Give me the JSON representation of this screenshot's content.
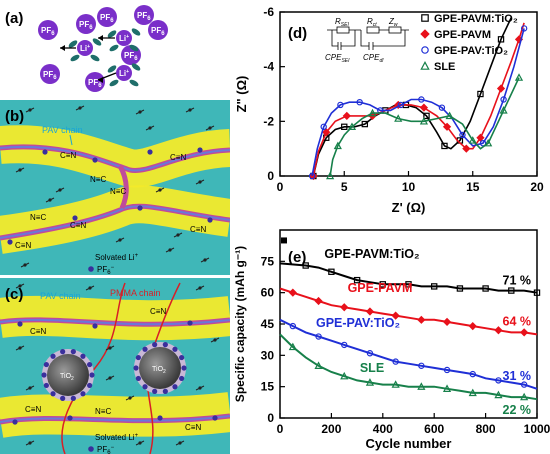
{
  "panels": {
    "a": {
      "label": "(a)",
      "ion_pf6": "PF",
      "ion_pf6_sub": "6",
      "ion_li": "Li",
      "ion_li_sup": "+"
    },
    "b": {
      "label": "(b)",
      "pav_chain": "PAV chain",
      "cn": "C≡N",
      "nc": "N≡C",
      "legend_li": "Solvated Li",
      "legend_li_sup": "+",
      "legend_pf6": "PF",
      "legend_pf6_sub": "6",
      "legend_pf6_sup": "−"
    },
    "c": {
      "label": "(c)",
      "pav_chain": "PAV chain",
      "pmma_chain": "PMMA chain",
      "tio2": "TiO",
      "tio2_sub": "2",
      "cn": "C≡N",
      "nc": "N≡C",
      "legend_li": "Solvated Li",
      "legend_li_sup": "+",
      "legend_pf6": "PF",
      "legend_pf6_sub": "6",
      "legend_pf6_sup": "−"
    }
  },
  "colors": {
    "gpe_pavm_tio2": "#000000",
    "gpe_pavm": "#e8111b",
    "gpe_pav_tio2": "#1f2fd6",
    "sle": "#17804a",
    "pf6": "#7a2fc9",
    "li": "#7a2fc9",
    "yellow": "#f3ea2a",
    "teal": "#3fb7b8"
  },
  "chart_data": [
    {
      "panel": "(d)",
      "type": "scatter",
      "xlabel": "Z' (Ω)",
      "ylabel": "Z\" (Ω)",
      "xlim": [
        0,
        20
      ],
      "ylim": [
        0,
        -6
      ],
      "xticks": [
        "0",
        "5",
        "10",
        "15",
        "20"
      ],
      "yticks": [
        "0",
        "-2",
        "-4",
        "-6"
      ],
      "circuit_labels": {
        "rsei": "R",
        "rsei_sub": "SEI",
        "rct": "R",
        "rct_sub": "ct",
        "zw": "Z",
        "zw_sub": "w",
        "cpe_sei": "CPE",
        "cpe_sei_sub": "SEI",
        "cpe_dl": "CPE",
        "cpe_dl_sub": "dl"
      },
      "series": [
        {
          "name": "GPE-PAVM:TiO₂",
          "marker": "square",
          "x": [
            2.6,
            3.0,
            3.6,
            4.3,
            5.0,
            5.8,
            6.6,
            7.4,
            8.2,
            9.0,
            9.8,
            10.6,
            11.4,
            12.2,
            12.8,
            13.3,
            14.0,
            14.8,
            15.6,
            16.4,
            17.2,
            18.0
          ],
          "y": [
            0,
            -0.8,
            -1.4,
            -1.7,
            -1.8,
            -1.8,
            -1.9,
            -2.2,
            -2.4,
            -2.6,
            -2.6,
            -2.5,
            -2.2,
            -1.6,
            -1.1,
            -1.0,
            -1.3,
            -2.0,
            -3.0,
            -4.0,
            -5.0,
            -5.8
          ]
        },
        {
          "name": "GPE-PAVM",
          "marker": "diamond",
          "x": [
            2.6,
            3.0,
            3.6,
            4.3,
            5.2,
            6.2,
            7.2,
            8.2,
            9.2,
            10.2,
            11.2,
            12.2,
            13.0,
            13.8,
            14.5,
            15.0,
            15.6,
            16.4,
            17.2,
            18.0,
            18.6,
            19.0
          ],
          "y": [
            0,
            -0.9,
            -1.6,
            -2.0,
            -2.2,
            -2.2,
            -2.2,
            -2.4,
            -2.6,
            -2.6,
            -2.5,
            -2.2,
            -1.8,
            -1.3,
            -1.0,
            -1.0,
            -1.4,
            -2.2,
            -3.2,
            -4.2,
            -5.0,
            -5.6
          ]
        },
        {
          "name": "GPE-PAV:TiO₂",
          "marker": "circle",
          "x": [
            2.5,
            2.9,
            3.4,
            4.0,
            4.7,
            5.4,
            6.2,
            7.0,
            7.8,
            8.6,
            9.4,
            10.2,
            11.0,
            11.8,
            12.6,
            13.4,
            14.2,
            15.0,
            15.8,
            16.6,
            17.4,
            18.2,
            19.0
          ],
          "y": [
            0,
            -1.0,
            -1.8,
            -2.3,
            -2.6,
            -2.7,
            -2.7,
            -2.6,
            -2.4,
            -2.4,
            -2.6,
            -2.8,
            -2.8,
            -2.7,
            -2.5,
            -2.1,
            -1.5,
            -1.1,
            -1.2,
            -1.8,
            -2.8,
            -4.0,
            -5.4
          ]
        },
        {
          "name": "SLE",
          "marker": "triangle",
          "x": [
            3.9,
            4.1,
            4.5,
            5.0,
            5.6,
            6.4,
            7.2,
            8.2,
            9.2,
            10.2,
            11.2,
            12.2,
            13.2,
            14.2,
            15.0,
            15.6,
            16.2,
            16.8,
            17.4,
            18.0,
            18.6
          ],
          "y": [
            0,
            -0.6,
            -1.1,
            -1.5,
            -1.8,
            -2.1,
            -2.3,
            -2.3,
            -2.1,
            -2.0,
            -2.0,
            -2.1,
            -2.2,
            -1.9,
            -1.3,
            -1.0,
            -1.2,
            -1.8,
            -2.4,
            -3.0,
            -3.6
          ]
        }
      ]
    },
    {
      "panel": "(e)",
      "type": "scatter",
      "xlabel": "Cycle number",
      "ylabel": "Specific capacity (mAh g⁻¹)",
      "xlim": [
        0,
        1000
      ],
      "ylim": [
        0,
        90
      ],
      "xticks": [
        "0",
        "200",
        "400",
        "600",
        "800",
        "1000"
      ],
      "yticks": [
        "0",
        "15",
        "30",
        "45",
        "60",
        "75"
      ],
      "first_point": {
        "x": 0,
        "y": 85
      },
      "annotations": [
        {
          "text": "GPE-PAVM:TiO₂",
          "series": 0
        },
        {
          "text": "GPE-PAVM",
          "series": 1
        },
        {
          "text": "GPE-PAV:TiO₂",
          "series": 2
        },
        {
          "text": "SLE",
          "series": 3
        }
      ],
      "retention": [
        "71 %",
        "64 %",
        "31 %",
        "22 %"
      ],
      "series": [
        {
          "name": "GPE-PAVM:TiO₂",
          "marker": "square",
          "x": [
            0,
            100,
            150,
            200,
            250,
            300,
            350,
            400,
            450,
            500,
            550,
            600,
            650,
            700,
            750,
            800,
            850,
            900,
            950,
            1000
          ],
          "y": [
            74,
            73,
            72,
            70,
            68,
            66,
            65,
            64,
            64,
            64,
            63,
            63,
            63,
            62,
            62,
            62,
            61,
            61,
            61,
            60
          ]
        },
        {
          "name": "GPE-PAVM",
          "marker": "diamond",
          "x": [
            0,
            50,
            100,
            150,
            200,
            250,
            300,
            350,
            400,
            450,
            500,
            550,
            600,
            650,
            700,
            750,
            800,
            850,
            900,
            950,
            1000
          ],
          "y": [
            62,
            60,
            58,
            56,
            54,
            53,
            52,
            51,
            50,
            49,
            48,
            47,
            47,
            46,
            45,
            44,
            43,
            42,
            41,
            41,
            40
          ]
        },
        {
          "name": "GPE-PAV:TiO₂",
          "marker": "circle",
          "x": [
            0,
            50,
            100,
            150,
            200,
            250,
            300,
            350,
            400,
            450,
            500,
            550,
            600,
            650,
            700,
            750,
            800,
            850,
            900,
            950,
            1000
          ],
          "y": [
            47,
            44,
            41,
            39,
            37,
            35,
            33,
            31,
            29,
            27,
            26,
            25,
            24,
            23,
            22,
            21,
            19,
            18,
            17,
            16,
            14
          ]
        },
        {
          "name": "SLE",
          "marker": "triangle",
          "x": [
            0,
            50,
            100,
            150,
            200,
            250,
            300,
            350,
            400,
            450,
            500,
            550,
            600,
            650,
            700,
            750,
            800,
            850,
            900,
            950,
            1000
          ],
          "y": [
            40,
            34,
            29,
            25,
            22,
            20,
            18,
            17,
            16,
            16,
            15,
            15,
            15,
            14,
            13,
            12,
            12,
            11,
            10,
            10,
            9
          ]
        }
      ]
    }
  ]
}
